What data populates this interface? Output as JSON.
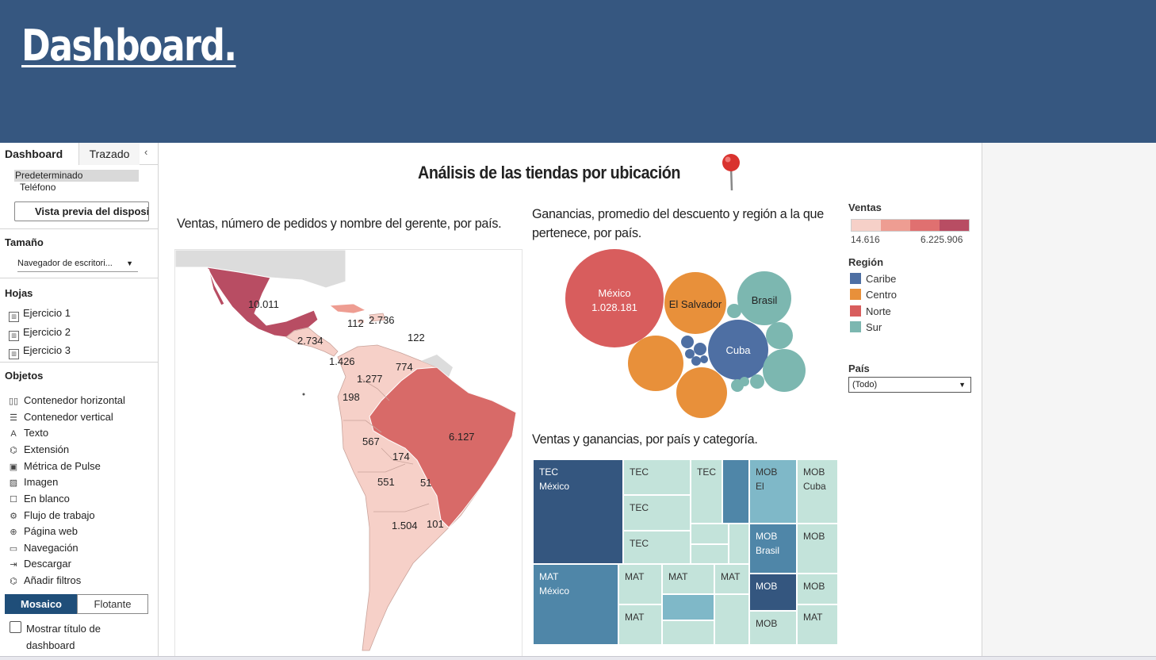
{
  "banner": {
    "title": "Dashboard."
  },
  "sidebar": {
    "tabs": {
      "dashboard": "Dashboard",
      "layout": "Trazado",
      "collapse": "‹"
    },
    "devices": {
      "default": "Predeterminado",
      "phone": "Teléfono"
    },
    "preview_button": "Vista previa del dispositivo",
    "size": {
      "heading": "Tamaño",
      "value": "Navegador de escritori...",
      "caret": "▼"
    },
    "sheets": {
      "heading": "Hojas",
      "items": [
        {
          "label": "Ejercicio 1"
        },
        {
          "label": "Ejercicio 2"
        },
        {
          "label": "Ejercicio 3"
        }
      ]
    },
    "objects": {
      "heading": "Objetos",
      "items": [
        {
          "icon": "horizontal-container-icon",
          "glyph": "▯▯",
          "label": "Contenedor horizontal"
        },
        {
          "icon": "vertical-container-icon",
          "glyph": "☰",
          "label": "Contenedor vertical"
        },
        {
          "icon": "text-icon",
          "glyph": "A",
          "label": "Texto"
        },
        {
          "icon": "extension-icon",
          "glyph": "⌬",
          "label": "Extensión"
        },
        {
          "icon": "pulse-metric-icon",
          "glyph": "▣",
          "label": "Métrica de Pulse"
        },
        {
          "icon": "image-icon",
          "glyph": "▨",
          "label": "Imagen"
        },
        {
          "icon": "blank-icon",
          "glyph": "☐",
          "label": "En blanco"
        },
        {
          "icon": "workflow-icon",
          "glyph": "⚙",
          "label": "Flujo de trabajo"
        },
        {
          "icon": "web-page-icon",
          "glyph": "⊕",
          "label": "Página web"
        },
        {
          "icon": "navigation-icon",
          "glyph": "▭",
          "label": "Navegación"
        },
        {
          "icon": "download-icon",
          "glyph": "⇥",
          "label": "Descargar"
        },
        {
          "icon": "add-filters-icon",
          "glyph": "⌬",
          "label": "Añadir filtros"
        }
      ]
    },
    "layout_mode": {
      "tiled": "Mosaico",
      "floating": "Flotante"
    },
    "show_title": "Mostrar título de dashboard"
  },
  "dashboard": {
    "title": "Análisis de las tiendas por ubicación",
    "map_title": "Ventas, número de pedidos y nombre del gerente, por país.",
    "bubble_title": "Ganancias, promedio del descuento y región a la que pertenece, por país.",
    "treemap_title": "Ventas y ganancias, por país y categoría."
  },
  "legend": {
    "sales": {
      "heading": "Ventas",
      "min": "14.616",
      "max": "6.225.906",
      "colors": [
        "#f6d0c8",
        "#ee9d92",
        "#e07070",
        "#b84d63"
      ]
    },
    "region": {
      "heading": "Región",
      "items": [
        {
          "label": "Caribe",
          "color": "#4e6fa3"
        },
        {
          "label": "Centro",
          "color": "#e8903a"
        },
        {
          "label": "Norte",
          "color": "#d85d5d"
        },
        {
          "label": "Sur",
          "color": "#7cb7b0"
        }
      ]
    },
    "country_filter": {
      "heading": "País",
      "value": "(Todo)",
      "caret": "▼"
    }
  },
  "chart_data": [
    {
      "type": "map",
      "title": "Ventas, número de pedidos y nombre del gerente, por país.",
      "labels": [
        "10.011",
        "112",
        "2.736",
        "2.734",
        "122",
        "1.426",
        "774",
        "1.277",
        "198",
        "6.127",
        "567",
        "174",
        "551",
        "51",
        "1.504",
        "101"
      ]
    },
    {
      "type": "bubble",
      "title": "Ganancias, promedio del descuento y región a la que pertenece, por país.",
      "bubbles": [
        {
          "label": "México",
          "value_label": "1.028.181",
          "region": "Norte"
        },
        {
          "label": "El Salvador",
          "region": "Centro"
        },
        {
          "label": "Brasil",
          "region": "Sur"
        },
        {
          "label": "Cuba",
          "region": "Caribe"
        }
      ]
    },
    {
      "type": "treemap",
      "title": "Ventas y ganancias, por país y categoría.",
      "labels": [
        [
          "TEC",
          "México"
        ],
        [
          "TEC"
        ],
        [
          "TEC"
        ],
        [
          "TEC"
        ],
        [
          "TEC"
        ],
        [
          "MOB",
          "El"
        ],
        [
          "MOB",
          "Cuba"
        ],
        [
          "MOB",
          "Brasil"
        ],
        [
          "MOB"
        ],
        [
          "MOB"
        ],
        [
          "MOB"
        ],
        [
          "MOB"
        ],
        [
          "MAT",
          "México"
        ],
        [
          "MAT"
        ],
        [
          "MAT"
        ],
        [
          "MAT"
        ],
        [
          "MAT"
        ]
      ]
    }
  ]
}
